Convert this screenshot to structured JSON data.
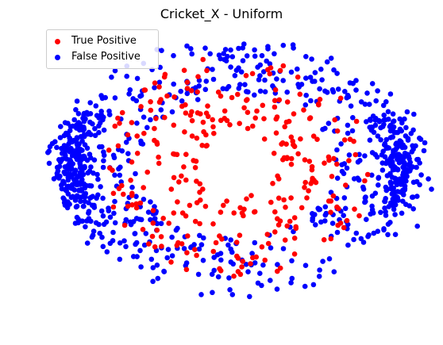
{
  "chart_data": {
    "type": "scatter",
    "title": "Cricket_X - Uniform",
    "xlabel": "",
    "ylabel": "",
    "axes_visible": false,
    "grid": false,
    "legend_position": "top-left",
    "xlim": [
      -1.0,
      1.0
    ],
    "ylim": [
      -1.0,
      1.0
    ],
    "series": [
      {
        "name": "True Positive",
        "color": "#ff0000",
        "note": "approximately 300 points, concentrated near the inner ring and centre",
        "count_estimate": 300
      },
      {
        "name": "False Positive",
        "color": "#0000ff",
        "note": "approximately 900 points, densest at the left and right edges of the ring",
        "count_estimate": 900
      }
    ]
  }
}
